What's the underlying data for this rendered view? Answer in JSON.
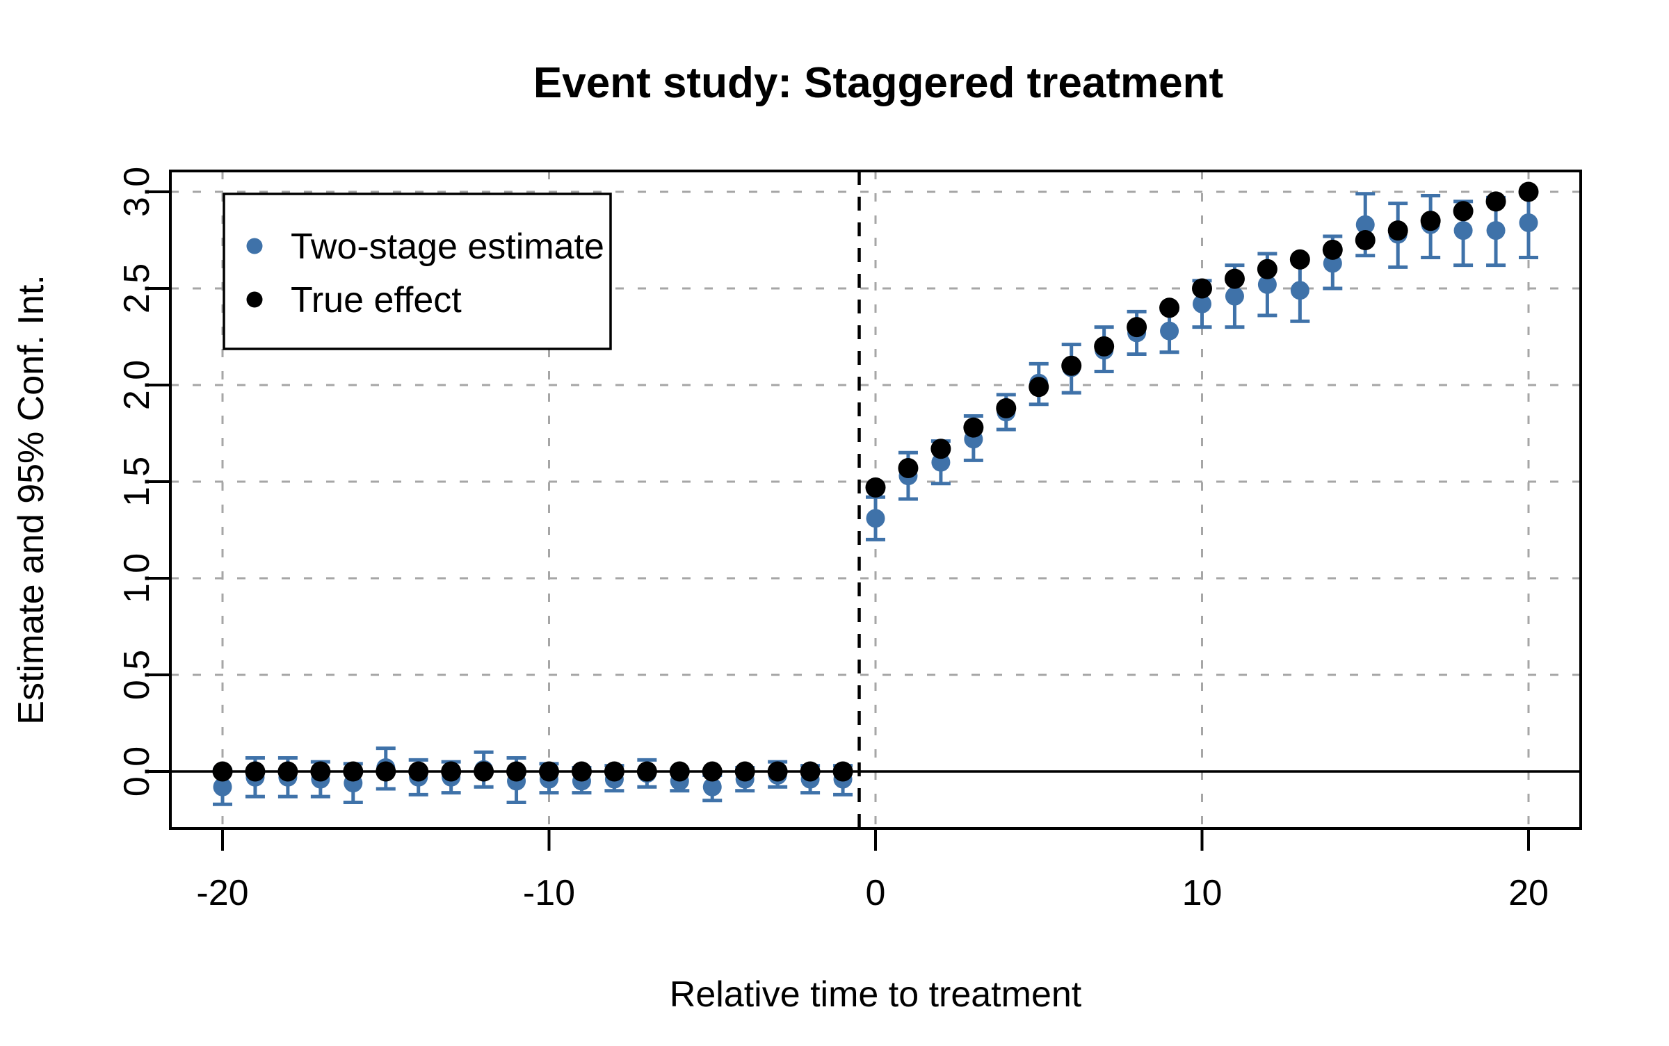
{
  "page": {
    "background": "#ffffff"
  },
  "chart_data": {
    "type": "scatter",
    "title": "Event study: Staggered treatment",
    "xlabel": "Relative time to treatment",
    "ylabel": "Estimate and 95% Conf. Int.",
    "xlim": [
      -21.6,
      21.6
    ],
    "ylim": [
      -0.3,
      3.11
    ],
    "xticks": [
      -20,
      -10,
      0,
      10,
      20
    ],
    "yticks": [
      0.0,
      0.5,
      1.0,
      1.5,
      2.0,
      2.5,
      3.0
    ],
    "grid": {
      "show": true,
      "color": "#a6a6a6",
      "style": "dashed"
    },
    "reference_lines": {
      "horizontal_solid_y": 0.0,
      "vertical_dashed_x": -0.5
    },
    "legend": {
      "position": "top-left",
      "entries": [
        {
          "label": "Two-stage estimate",
          "color": "#3f72a9"
        },
        {
          "label": "True effect",
          "color": "#000000"
        }
      ]
    },
    "series": [
      {
        "name": "Two-stage estimate",
        "color": "#3f72a9",
        "marker": "circle",
        "error_bars": true,
        "columns": [
          "t",
          "estimate",
          "ci_low",
          "ci_high"
        ],
        "points": [
          [
            -20,
            -0.08,
            -0.17,
            0.01
          ],
          [
            -19,
            -0.03,
            -0.13,
            0.07
          ],
          [
            -18,
            -0.03,
            -0.13,
            0.07
          ],
          [
            -17,
            -0.04,
            -0.13,
            0.05
          ],
          [
            -16,
            -0.06,
            -0.16,
            0.04
          ],
          [
            -15,
            0.02,
            -0.09,
            0.12
          ],
          [
            -14,
            -0.03,
            -0.12,
            0.06
          ],
          [
            -13,
            -0.03,
            -0.11,
            0.05
          ],
          [
            -12,
            0.01,
            -0.08,
            0.1
          ],
          [
            -11,
            -0.05,
            -0.16,
            0.07
          ],
          [
            -10,
            -0.04,
            -0.11,
            0.04
          ],
          [
            -9,
            -0.05,
            -0.11,
            0.02
          ],
          [
            -8,
            -0.04,
            -0.1,
            0.03
          ],
          [
            -7,
            -0.01,
            -0.08,
            0.06
          ],
          [
            -6,
            -0.05,
            -0.1,
            0.01
          ],
          [
            -5,
            -0.08,
            -0.15,
            -0.02
          ],
          [
            -4,
            -0.04,
            -0.1,
            0.02
          ],
          [
            -3,
            -0.02,
            -0.08,
            0.05
          ],
          [
            -2,
            -0.04,
            -0.11,
            0.03
          ],
          [
            -1,
            -0.04,
            -0.12,
            0.03
          ],
          [
            0,
            1.31,
            1.2,
            1.42
          ],
          [
            1,
            1.53,
            1.41,
            1.65
          ],
          [
            2,
            1.6,
            1.49,
            1.71
          ],
          [
            3,
            1.72,
            1.61,
            1.84
          ],
          [
            4,
            1.86,
            1.77,
            1.95
          ],
          [
            5,
            2.01,
            1.9,
            2.11
          ],
          [
            6,
            2.09,
            1.96,
            2.21
          ],
          [
            7,
            2.18,
            2.07,
            2.3
          ],
          [
            8,
            2.27,
            2.16,
            2.38
          ],
          [
            9,
            2.28,
            2.17,
            2.39
          ],
          [
            10,
            2.42,
            2.3,
            2.54
          ],
          [
            11,
            2.46,
            2.3,
            2.62
          ],
          [
            12,
            2.52,
            2.36,
            2.68
          ],
          [
            13,
            2.49,
            2.33,
            2.65
          ],
          [
            14,
            2.63,
            2.5,
            2.77
          ],
          [
            15,
            2.83,
            2.67,
            2.99
          ],
          [
            16,
            2.78,
            2.61,
            2.94
          ],
          [
            17,
            2.83,
            2.66,
            2.98
          ],
          [
            18,
            2.8,
            2.62,
            2.95
          ],
          [
            19,
            2.8,
            2.62,
            2.97
          ],
          [
            20,
            2.84,
            2.66,
            3.0
          ]
        ]
      },
      {
        "name": "True effect",
        "color": "#000000",
        "marker": "circle",
        "error_bars": false,
        "columns": [
          "t",
          "estimate"
        ],
        "points": [
          [
            -20,
            0.0
          ],
          [
            -19,
            0.0
          ],
          [
            -18,
            0.0
          ],
          [
            -17,
            0.0
          ],
          [
            -16,
            0.0
          ],
          [
            -15,
            0.0
          ],
          [
            -14,
            0.0
          ],
          [
            -13,
            0.0
          ],
          [
            -12,
            0.0
          ],
          [
            -11,
            0.0
          ],
          [
            -10,
            0.0
          ],
          [
            -9,
            0.0
          ],
          [
            -8,
            0.0
          ],
          [
            -7,
            0.0
          ],
          [
            -6,
            0.0
          ],
          [
            -5,
            0.0
          ],
          [
            -4,
            0.0
          ],
          [
            -3,
            0.0
          ],
          [
            -2,
            0.0
          ],
          [
            -1,
            0.0
          ],
          [
            0,
            1.47
          ],
          [
            1,
            1.57
          ],
          [
            2,
            1.67
          ],
          [
            3,
            1.78
          ],
          [
            4,
            1.88
          ],
          [
            5,
            1.99
          ],
          [
            6,
            2.1
          ],
          [
            7,
            2.2
          ],
          [
            8,
            2.3
          ],
          [
            9,
            2.4
          ],
          [
            10,
            2.5
          ],
          [
            11,
            2.55
          ],
          [
            12,
            2.6
          ],
          [
            13,
            2.65
          ],
          [
            14,
            2.7
          ],
          [
            15,
            2.75
          ],
          [
            16,
            2.8
          ],
          [
            17,
            2.85
          ],
          [
            18,
            2.9
          ],
          [
            19,
            2.95
          ],
          [
            20,
            3.0
          ]
        ]
      }
    ]
  }
}
